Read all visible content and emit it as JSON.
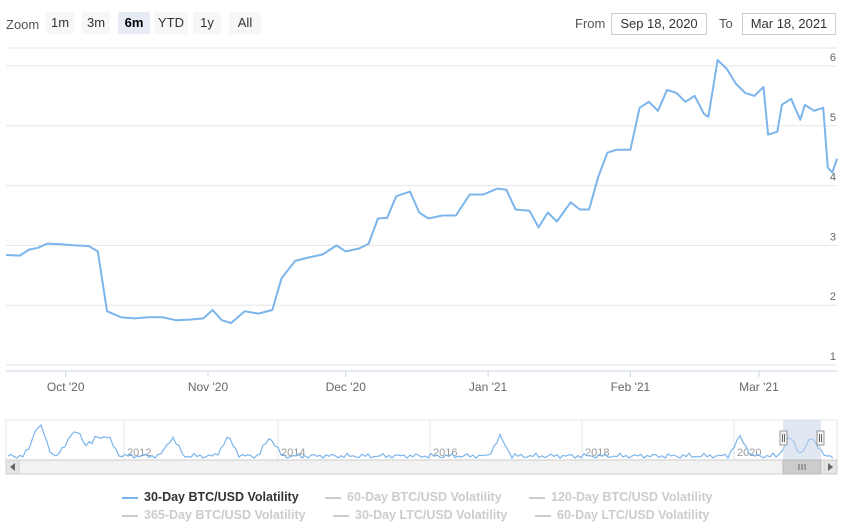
{
  "toolbar": {
    "zoom_label": "Zoom",
    "zoom_buttons": [
      "1m",
      "3m",
      "6m",
      "YTD",
      "1y",
      "All"
    ],
    "active_zoom": "6m",
    "from_label": "From",
    "from_value": "Sep 18, 2020",
    "to_label": "To",
    "to_value": "Mar 18, 2021"
  },
  "colors": {
    "series": "#7cb5ec",
    "grid": "#e6e6e6",
    "navigator_mask": "#c6d3ea",
    "inactive_legend": "#cccccc"
  },
  "chart_data": {
    "type": "line",
    "x_tick_labels": [
      "Oct '20",
      "Nov '20",
      "Dec '20",
      "Jan '21",
      "Feb '21",
      "Mar '21"
    ],
    "y_tick_labels": [
      "1",
      "2",
      "3",
      "4",
      "5",
      "6"
    ],
    "xlim": [
      "2020-09-18",
      "2021-03-18"
    ],
    "ylim": [
      0.9,
      6.3
    ],
    "grid": true,
    "series": [
      {
        "name": "30-Day BTC/USD Volatility",
        "color": "#7cb5ec",
        "points": [
          [
            "2020-09-18",
            2.84
          ],
          [
            "2020-09-21",
            2.83
          ],
          [
            "2020-09-23",
            2.93
          ],
          [
            "2020-09-25",
            2.96
          ],
          [
            "2020-09-27",
            3.03
          ],
          [
            "2020-09-30",
            3.02
          ],
          [
            "2020-10-03",
            3.0
          ],
          [
            "2020-10-06",
            2.99
          ],
          [
            "2020-10-08",
            2.9
          ],
          [
            "2020-10-10",
            1.9
          ],
          [
            "2020-10-13",
            1.8
          ],
          [
            "2020-10-16",
            1.78
          ],
          [
            "2020-10-19",
            1.8
          ],
          [
            "2020-10-22",
            1.8
          ],
          [
            "2020-10-25",
            1.75
          ],
          [
            "2020-10-28",
            1.76
          ],
          [
            "2020-10-31",
            1.78
          ],
          [
            "2020-11-02",
            1.92
          ],
          [
            "2020-11-04",
            1.75
          ],
          [
            "2020-11-06",
            1.7
          ],
          [
            "2020-11-09",
            1.9
          ],
          [
            "2020-11-12",
            1.86
          ],
          [
            "2020-11-15",
            1.92
          ],
          [
            "2020-11-17",
            2.45
          ],
          [
            "2020-11-20",
            2.74
          ],
          [
            "2020-11-23",
            2.8
          ],
          [
            "2020-11-26",
            2.85
          ],
          [
            "2020-11-29",
            3.0
          ],
          [
            "2020-12-01",
            2.9
          ],
          [
            "2020-12-04",
            2.95
          ],
          [
            "2020-12-06",
            3.03
          ],
          [
            "2020-12-08",
            3.45
          ],
          [
            "2020-12-10",
            3.46
          ],
          [
            "2020-12-12",
            3.82
          ],
          [
            "2020-12-15",
            3.9
          ],
          [
            "2020-12-17",
            3.55
          ],
          [
            "2020-12-19",
            3.45
          ],
          [
            "2020-12-22",
            3.5
          ],
          [
            "2020-12-25",
            3.5
          ],
          [
            "2020-12-28",
            3.85
          ],
          [
            "2020-12-31",
            3.85
          ],
          [
            "2021-01-03",
            3.95
          ],
          [
            "2021-01-05",
            3.93
          ],
          [
            "2021-01-07",
            3.6
          ],
          [
            "2021-01-10",
            3.58
          ],
          [
            "2021-01-12",
            3.3
          ],
          [
            "2021-01-14",
            3.55
          ],
          [
            "2021-01-16",
            3.4
          ],
          [
            "2021-01-19",
            3.72
          ],
          [
            "2021-01-21",
            3.6
          ],
          [
            "2021-01-23",
            3.6
          ],
          [
            "2021-01-25",
            4.15
          ],
          [
            "2021-01-27",
            4.55
          ],
          [
            "2021-01-29",
            4.6
          ],
          [
            "2021-02-01",
            4.6
          ],
          [
            "2021-02-03",
            5.3
          ],
          [
            "2021-02-05",
            5.4
          ],
          [
            "2021-02-07",
            5.25
          ],
          [
            "2021-02-09",
            5.6
          ],
          [
            "2021-02-11",
            5.55
          ],
          [
            "2021-02-13",
            5.4
          ],
          [
            "2021-02-15",
            5.5
          ],
          [
            "2021-02-17",
            5.2
          ],
          [
            "2021-02-18",
            5.15
          ],
          [
            "2021-02-20",
            6.1
          ],
          [
            "2021-02-22",
            5.95
          ],
          [
            "2021-02-24",
            5.7
          ],
          [
            "2021-02-26",
            5.55
          ],
          [
            "2021-02-28",
            5.5
          ],
          [
            "2021-03-02",
            5.65
          ],
          [
            "2021-03-03",
            4.85
          ],
          [
            "2021-03-05",
            4.9
          ],
          [
            "2021-03-06",
            5.35
          ],
          [
            "2021-03-08",
            5.45
          ],
          [
            "2021-03-10",
            5.1
          ],
          [
            "2021-03-11",
            5.35
          ],
          [
            "2021-03-13",
            5.25
          ],
          [
            "2021-03-15",
            5.3
          ],
          [
            "2021-03-16",
            4.3
          ],
          [
            "2021-03-17",
            4.22
          ],
          [
            "2021-03-18",
            4.45
          ]
        ]
      }
    ],
    "navigator": {
      "x_tick_labels": [
        "2012",
        "2014",
        "2016",
        "2018",
        "2020"
      ],
      "selected_range": [
        "Sep 18, 2020",
        "Mar 18, 2021"
      ]
    },
    "legend": {
      "placement": "bottom",
      "items": [
        {
          "label": "30-Day BTC/USD Volatility",
          "active": true
        },
        {
          "label": "60-Day BTC/USD Volatility",
          "active": false
        },
        {
          "label": "120-Day BTC/USD Volatility",
          "active": false
        },
        {
          "label": "365-Day BTC/USD Volatility",
          "active": false
        },
        {
          "label": "30-Day LTC/USD Volatility",
          "active": false
        },
        {
          "label": "60-Day LTC/USD Volatility",
          "active": false
        }
      ]
    }
  }
}
